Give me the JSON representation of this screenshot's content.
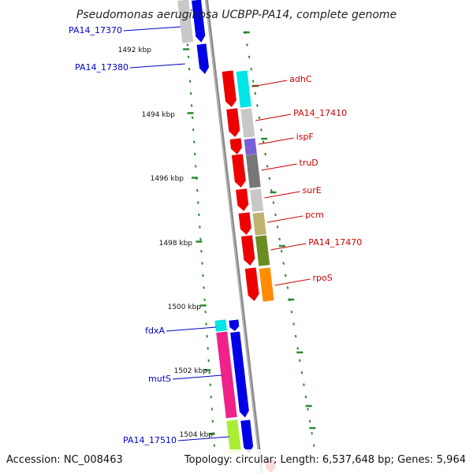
{
  "map": {
    "title": "Pseudomonas aeruginosa UCBPP-PA14, complete genome",
    "accession": "Accession: NC_008463",
    "summary": "Topology: circular; Length: 6,537,648 bp; Genes: 5,964"
  },
  "colors": {
    "backbone": "#8c8c8c",
    "tick": "#2a8a2a",
    "forward_label": "#0000c8",
    "reverse_label": "#cc0000",
    "forward_cds": "#0000e6",
    "reverse_cds": "#ee0000"
  },
  "scale_labels": [
    "1492 kbp",
    "1494 kbp",
    "1496 kbp",
    "1498 kbp",
    "1500 kbp",
    "1502 kbp",
    "1504 kbp"
  ],
  "genes_forward": [
    {
      "name": "PA14_17370",
      "cog": "#c8c8c8"
    },
    {
      "name": "PA14_17380",
      "cog": ""
    },
    {
      "name": "fdxA",
      "cog": "#00e5e5"
    },
    {
      "name": "mutS",
      "cog": "#ee2288"
    },
    {
      "name": "PA14_17510",
      "cog": "#aaee33"
    }
  ],
  "genes_reverse": [
    {
      "name": "adhC",
      "cog": "#00e5e5"
    },
    {
      "name": "PA14_17410",
      "cog": "#c8c8c8"
    },
    {
      "name": "ispF",
      "cog": "#7a5ed6"
    },
    {
      "name": "truD",
      "cog": "#777777"
    },
    {
      "name": "surE",
      "cog": "#c8c8c8"
    },
    {
      "name": "pcm",
      "cog": "#bdb26e"
    },
    {
      "name": "PA14_17470",
      "cog": "#6b8e23"
    },
    {
      "name": "rpoS",
      "cog": "#ff8c00"
    }
  ]
}
